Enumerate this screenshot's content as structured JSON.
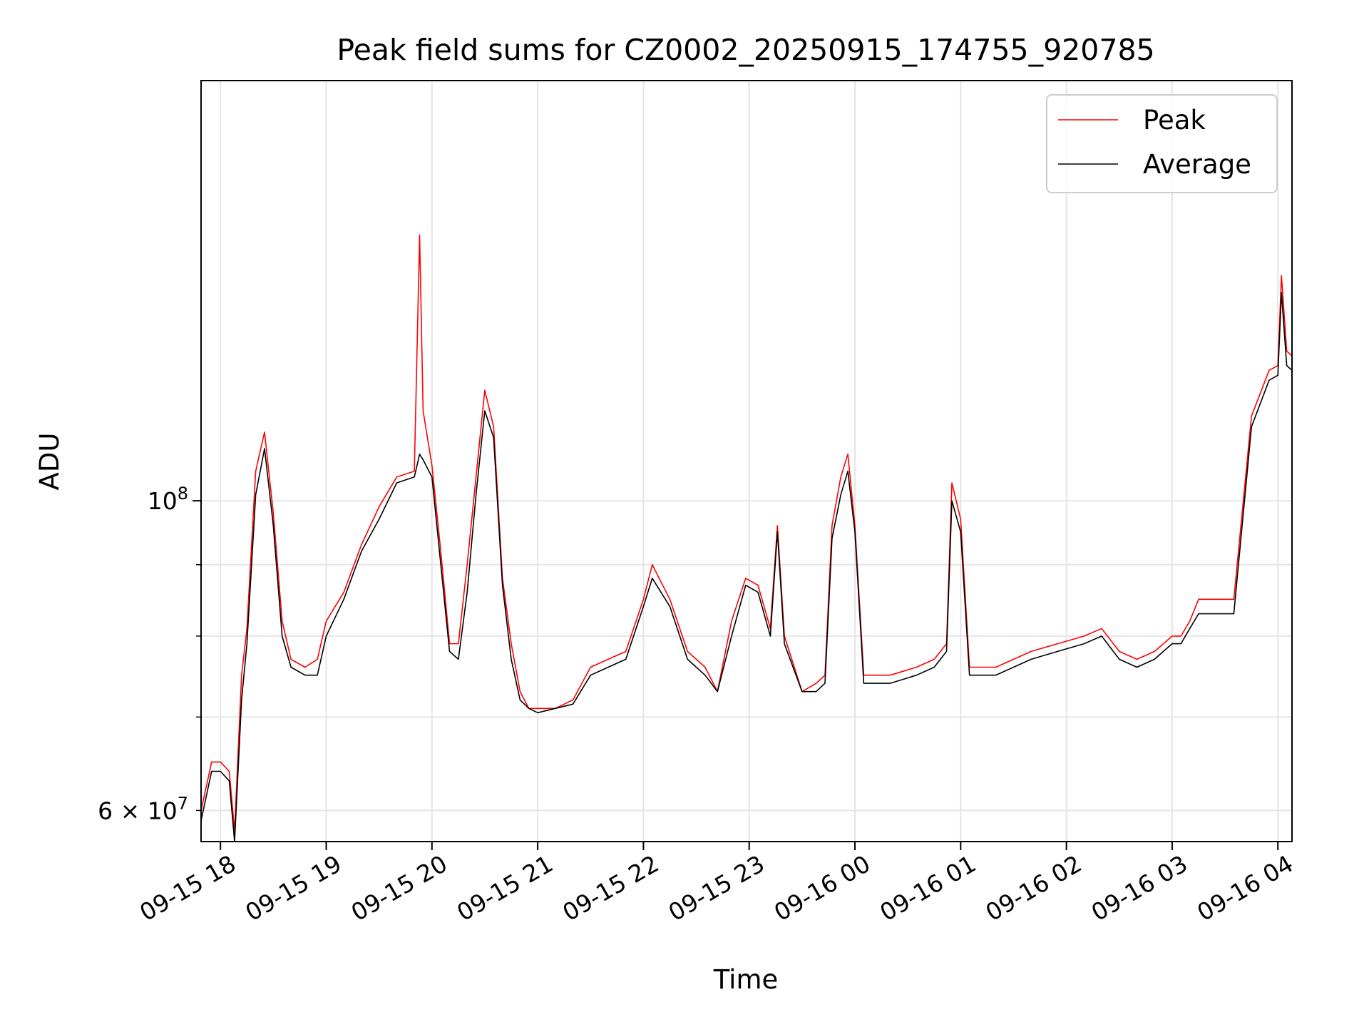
{
  "chart_data": {
    "type": "line",
    "title": "Peak field sums for CZ0002_20250915_174755_920785",
    "xlabel": "Time",
    "ylabel": "ADU",
    "x_axis": "time",
    "x_range": [
      "2025-09-15 17:49",
      "2025-09-16 04:08"
    ],
    "y_scale": "log",
    "ylim": [
      57000000,
      200000000
    ],
    "grid": true,
    "legend_position": "top-right",
    "x_ticks": [
      {
        "value": "2025-09-15 18:00",
        "label": "09-15 18"
      },
      {
        "value": "2025-09-15 19:00",
        "label": "09-15 19"
      },
      {
        "value": "2025-09-15 20:00",
        "label": "09-15 20"
      },
      {
        "value": "2025-09-15 21:00",
        "label": "09-15 21"
      },
      {
        "value": "2025-09-15 22:00",
        "label": "09-15 22"
      },
      {
        "value": "2025-09-15 23:00",
        "label": "09-15 23"
      },
      {
        "value": "2025-09-16 00:00",
        "label": "09-16 00"
      },
      {
        "value": "2025-09-16 01:00",
        "label": "09-16 01"
      },
      {
        "value": "2025-09-16 02:00",
        "label": "09-16 02"
      },
      {
        "value": "2025-09-16 03:00",
        "label": "09-16 03"
      },
      {
        "value": "2025-09-16 04:00",
        "label": "09-16 04"
      }
    ],
    "y_ticks_major": [
      {
        "value": 100000000,
        "label_base": "10",
        "label_exp": "8"
      }
    ],
    "y_ticks_minor": [
      {
        "value": 60000000,
        "label_base": "6 × 10",
        "label_exp": "7"
      },
      {
        "value": 70000000
      },
      {
        "value": 80000000
      },
      {
        "value": 90000000
      }
    ],
    "series": [
      {
        "name": "Peak",
        "color": "#ff0000",
        "x": [
          "2025-09-15 17:49",
          "2025-09-15 17:55",
          "2025-09-15 18:00",
          "2025-09-15 18:05",
          "2025-09-15 18:08",
          "2025-09-15 18:12",
          "2025-09-15 18:15",
          "2025-09-15 18:20",
          "2025-09-15 18:25",
          "2025-09-15 18:30",
          "2025-09-15 18:35",
          "2025-09-15 18:40",
          "2025-09-15 18:48",
          "2025-09-15 18:55",
          "2025-09-15 19:00",
          "2025-09-15 19:10",
          "2025-09-15 19:20",
          "2025-09-15 19:30",
          "2025-09-15 19:40",
          "2025-09-15 19:50",
          "2025-09-15 19:53",
          "2025-09-15 19:55",
          "2025-09-15 20:00",
          "2025-09-15 20:05",
          "2025-09-15 20:10",
          "2025-09-15 20:15",
          "2025-09-15 20:20",
          "2025-09-15 20:25",
          "2025-09-15 20:30",
          "2025-09-15 20:35",
          "2025-09-15 20:40",
          "2025-09-15 20:45",
          "2025-09-15 20:50",
          "2025-09-15 20:55",
          "2025-09-15 21:00",
          "2025-09-15 21:10",
          "2025-09-15 21:20",
          "2025-09-15 21:30",
          "2025-09-15 21:40",
          "2025-09-15 21:50",
          "2025-09-15 22:00",
          "2025-09-15 22:05",
          "2025-09-15 22:15",
          "2025-09-15 22:25",
          "2025-09-15 22:35",
          "2025-09-15 22:42",
          "2025-09-15 22:50",
          "2025-09-15 22:58",
          "2025-09-15 23:05",
          "2025-09-15 23:12",
          "2025-09-15 23:16",
          "2025-09-15 23:20",
          "2025-09-15 23:30",
          "2025-09-15 23:38",
          "2025-09-15 23:43",
          "2025-09-15 23:47",
          "2025-09-15 23:52",
          "2025-09-15 23:56",
          "2025-09-16 00:00",
          "2025-09-16 00:05",
          "2025-09-16 00:20",
          "2025-09-16 00:35",
          "2025-09-16 00:45",
          "2025-09-16 00:52",
          "2025-09-16 00:55",
          "2025-09-16 01:00",
          "2025-09-16 01:05",
          "2025-09-16 01:20",
          "2025-09-16 01:40",
          "2025-09-16 01:55",
          "2025-09-16 02:10",
          "2025-09-16 02:20",
          "2025-09-16 02:30",
          "2025-09-16 02:40",
          "2025-09-16 02:50",
          "2025-09-16 02:55",
          "2025-09-16 03:00",
          "2025-09-16 03:05",
          "2025-09-16 03:10",
          "2025-09-16 03:15",
          "2025-09-16 03:25",
          "2025-09-16 03:35",
          "2025-09-16 03:45",
          "2025-09-16 03:55",
          "2025-09-16 04:00",
          "2025-09-16 04:02",
          "2025-09-16 04:05",
          "2025-09-16 04:08"
        ],
        "values": [
          60000000,
          65000000,
          65000000,
          64000000,
          58000000,
          75000000,
          81000000,
          105000000,
          112000000,
          98000000,
          82000000,
          77000000,
          76000000,
          77000000,
          82000000,
          86000000,
          93000000,
          99000000,
          104000000,
          105000000,
          155000000,
          116000000,
          106000000,
          92000000,
          79000000,
          79000000,
          90000000,
          104000000,
          120000000,
          113000000,
          88000000,
          79000000,
          73000000,
          71000000,
          71000000,
          71000000,
          72000000,
          76000000,
          77000000,
          78000000,
          85000000,
          90000000,
          85000000,
          78000000,
          76000000,
          73000000,
          82000000,
          88000000,
          87000000,
          81000000,
          96000000,
          80000000,
          73000000,
          74000000,
          75000000,
          96000000,
          104000000,
          108000000,
          96000000,
          75000000,
          75000000,
          76000000,
          77000000,
          79000000,
          103000000,
          97000000,
          76000000,
          76000000,
          78000000,
          79000000,
          80000000,
          81000000,
          78000000,
          77000000,
          78000000,
          79000000,
          80000000,
          80000000,
          82000000,
          85000000,
          85000000,
          85000000,
          115000000,
          124000000,
          125000000,
          145000000,
          128000000,
          127000000
        ]
      },
      {
        "name": "Average",
        "color": "#000000",
        "x": [
          "2025-09-15 17:49",
          "2025-09-15 17:55",
          "2025-09-15 18:00",
          "2025-09-15 18:05",
          "2025-09-15 18:08",
          "2025-09-15 18:12",
          "2025-09-15 18:15",
          "2025-09-15 18:20",
          "2025-09-15 18:25",
          "2025-09-15 18:30",
          "2025-09-15 18:35",
          "2025-09-15 18:40",
          "2025-09-15 18:48",
          "2025-09-15 18:55",
          "2025-09-15 19:00",
          "2025-09-15 19:10",
          "2025-09-15 19:20",
          "2025-09-15 19:30",
          "2025-09-15 19:40",
          "2025-09-15 19:50",
          "2025-09-15 19:53",
          "2025-09-15 19:55",
          "2025-09-15 20:00",
          "2025-09-15 20:05",
          "2025-09-15 20:10",
          "2025-09-15 20:15",
          "2025-09-15 20:20",
          "2025-09-15 20:25",
          "2025-09-15 20:30",
          "2025-09-15 20:35",
          "2025-09-15 20:40",
          "2025-09-15 20:45",
          "2025-09-15 20:50",
          "2025-09-15 20:55",
          "2025-09-15 21:00",
          "2025-09-15 21:10",
          "2025-09-15 21:20",
          "2025-09-15 21:30",
          "2025-09-15 21:40",
          "2025-09-15 21:50",
          "2025-09-15 22:00",
          "2025-09-15 22:05",
          "2025-09-15 22:15",
          "2025-09-15 22:25",
          "2025-09-15 22:35",
          "2025-09-15 22:42",
          "2025-09-15 22:50",
          "2025-09-15 22:58",
          "2025-09-15 23:05",
          "2025-09-15 23:12",
          "2025-09-15 23:16",
          "2025-09-15 23:20",
          "2025-09-15 23:30",
          "2025-09-15 23:38",
          "2025-09-15 23:43",
          "2025-09-15 23:47",
          "2025-09-15 23:52",
          "2025-09-15 23:56",
          "2025-09-16 00:00",
          "2025-09-16 00:05",
          "2025-09-16 00:20",
          "2025-09-16 00:35",
          "2025-09-16 00:45",
          "2025-09-16 00:52",
          "2025-09-16 00:55",
          "2025-09-16 01:00",
          "2025-09-16 01:05",
          "2025-09-16 01:20",
          "2025-09-16 01:40",
          "2025-09-16 01:55",
          "2025-09-16 02:10",
          "2025-09-16 02:20",
          "2025-09-16 02:30",
          "2025-09-16 02:40",
          "2025-09-16 02:50",
          "2025-09-16 02:55",
          "2025-09-16 03:00",
          "2025-09-16 03:05",
          "2025-09-16 03:10",
          "2025-09-16 03:15",
          "2025-09-16 03:25",
          "2025-09-16 03:35",
          "2025-09-16 03:45",
          "2025-09-16 03:55",
          "2025-09-16 04:00",
          "2025-09-16 04:02",
          "2025-09-16 04:05",
          "2025-09-16 04:08"
        ],
        "values": [
          59000000,
          64000000,
          64000000,
          63000000,
          57000000,
          72000000,
          79000000,
          101000000,
          109000000,
          96000000,
          80000000,
          76000000,
          75000000,
          75000000,
          80000000,
          85000000,
          92000000,
          97000000,
          103000000,
          104000000,
          108000000,
          107000000,
          104000000,
          90000000,
          78000000,
          77000000,
          86000000,
          101000000,
          116000000,
          111000000,
          87000000,
          77000000,
          72000000,
          71000000,
          70500000,
          71000000,
          71500000,
          75000000,
          76000000,
          77000000,
          84000000,
          88000000,
          84000000,
          77000000,
          75000000,
          73000000,
          80000000,
          87000000,
          86000000,
          80000000,
          95000000,
          79000000,
          73000000,
          73000000,
          74000000,
          94000000,
          101000000,
          105000000,
          95000000,
          74000000,
          74000000,
          75000000,
          76000000,
          78000000,
          100000000,
          95000000,
          75000000,
          75000000,
          77000000,
          78000000,
          79000000,
          80000000,
          77000000,
          76000000,
          77000000,
          78000000,
          79000000,
          79000000,
          81000000,
          83000000,
          83000000,
          83000000,
          113000000,
          122000000,
          123000000,
          141000000,
          125000000,
          124000000
        ]
      }
    ]
  }
}
